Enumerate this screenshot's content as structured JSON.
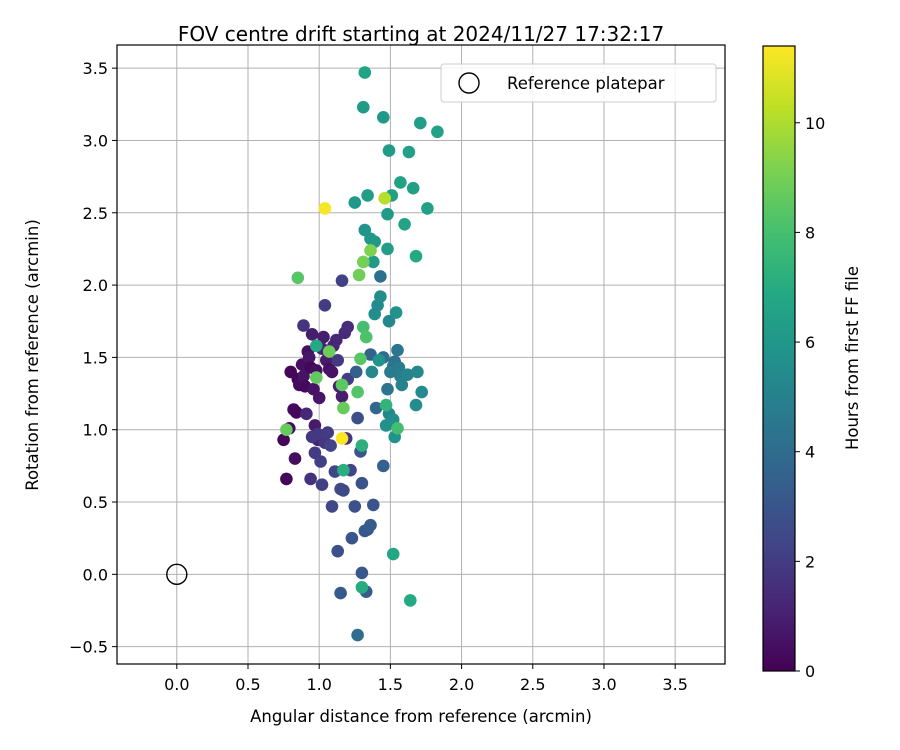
{
  "chart_data": {
    "type": "scatter",
    "title": "FOV centre drift starting at 2024/11/27 17:32:17",
    "xlabel": "Angular distance from reference (arcmin)",
    "ylabel": "Rotation from reference (arcmin)",
    "xlim": [
      -0.42,
      3.85
    ],
    "ylim": [
      -0.62,
      3.66
    ],
    "xticks": [
      0.0,
      0.5,
      1.0,
      1.5,
      2.0,
      2.5,
      3.0,
      3.5
    ],
    "xtick_labels": [
      "0.0",
      "0.5",
      "1.0",
      "1.5",
      "2.0",
      "2.5",
      "3.0",
      "3.5"
    ],
    "yticks": [
      -0.5,
      0.0,
      0.5,
      1.0,
      1.5,
      2.0,
      2.5,
      3.0,
      3.5
    ],
    "ytick_labels": [
      "−0.5",
      "0.0",
      "0.5",
      "1.0",
      "1.5",
      "2.0",
      "2.5",
      "3.0",
      "3.5"
    ],
    "grid": true,
    "legend": {
      "position": "top-right",
      "entries": [
        "Reference platepar"
      ]
    },
    "reference_point": {
      "x": 0.0,
      "y": 0.0,
      "label": "Reference platepar"
    },
    "colorbar": {
      "label": "Hours from first FF file",
      "colormap": "viridis",
      "range": [
        0,
        11.4
      ],
      "ticks": [
        0,
        2,
        4,
        6,
        8,
        10
      ],
      "tick_labels": [
        "0",
        "2",
        "4",
        "6",
        "8",
        "10"
      ]
    },
    "points": [
      [
        0.77,
        0.66,
        0.2
      ],
      [
        0.75,
        0.93,
        0.1
      ],
      [
        0.79,
        1.01,
        0.3
      ],
      [
        0.8,
        1.4,
        0.2
      ],
      [
        0.82,
        1.14,
        0.3
      ],
      [
        0.83,
        0.8,
        0.4
      ],
      [
        0.84,
        1.12,
        0.2
      ],
      [
        0.85,
        1.35,
        0.1
      ],
      [
        0.86,
        1.31,
        0.4
      ],
      [
        0.88,
        1.45,
        0.5
      ],
      [
        0.89,
        1.37,
        0.6
      ],
      [
        0.9,
        1.3,
        0.3
      ],
      [
        0.92,
        1.54,
        0.5
      ],
      [
        0.93,
        1.5,
        0.7
      ],
      [
        0.94,
        1.43,
        0.2
      ],
      [
        0.95,
        1.66,
        0.9
      ],
      [
        0.96,
        1.28,
        0.6
      ],
      [
        0.97,
        1.03,
        0.8
      ],
      [
        0.98,
        1.41,
        0.4
      ],
      [
        0.99,
        0.93,
        1.0
      ],
      [
        1.0,
        1.22,
        0.7
      ],
      [
        1.02,
        1.56,
        1.1
      ],
      [
        1.03,
        1.64,
        0.9
      ],
      [
        1.05,
        1.48,
        0.8
      ],
      [
        1.07,
        1.42,
        0.5
      ],
      [
        1.09,
        1.4,
        0.6
      ],
      [
        1.1,
        1.58,
        1.2
      ],
      [
        1.12,
        1.62,
        1.3
      ],
      [
        1.14,
        1.3,
        1.0
      ],
      [
        1.16,
        1.23,
        0.9
      ],
      [
        1.18,
        1.67,
        1.4
      ],
      [
        1.2,
        1.71,
        1.5
      ],
      [
        0.94,
        0.66,
        1.6
      ],
      [
        0.89,
        1.72,
        1.7
      ],
      [
        0.91,
        1.11,
        1.3
      ],
      [
        0.95,
        0.95,
        1.8
      ],
      [
        0.97,
        0.84,
        2.0
      ],
      [
        0.99,
        0.97,
        1.9
      ],
      [
        1.01,
        0.78,
        2.1
      ],
      [
        1.02,
        0.62,
        2.2
      ],
      [
        1.04,
        0.91,
        1.8
      ],
      [
        1.06,
        0.98,
        2.0
      ],
      [
        1.08,
        0.89,
        2.3
      ],
      [
        1.09,
        0.47,
        2.5
      ],
      [
        1.11,
        0.71,
        2.4
      ],
      [
        1.13,
        1.48,
        1.9
      ],
      [
        1.15,
        0.59,
        2.6
      ],
      [
        1.17,
        0.58,
        2.5
      ],
      [
        1.19,
        0.94,
        1.7
      ],
      [
        1.2,
        1.35,
        2.1
      ],
      [
        1.22,
        0.72,
        2.4
      ],
      [
        1.25,
        0.47,
        2.8
      ],
      [
        1.27,
        1.08,
        2.7
      ],
      [
        1.29,
        0.85,
        3.0
      ],
      [
        1.3,
        0.63,
        2.9
      ],
      [
        1.32,
        0.3,
        3.1
      ],
      [
        1.34,
        0.31,
        3.2
      ],
      [
        1.36,
        0.34,
        3.3
      ],
      [
        1.38,
        0.48,
        3.0
      ],
      [
        1.16,
        2.03,
        2.2
      ],
      [
        1.04,
        1.86,
        2.0
      ],
      [
        1.13,
        0.16,
        2.8
      ],
      [
        1.23,
        0.25,
        3.0
      ],
      [
        1.3,
        0.01,
        3.1
      ],
      [
        1.15,
        -0.13,
        3.2
      ],
      [
        1.33,
        -0.12,
        3.3
      ],
      [
        1.27,
        -0.42,
        4.0
      ],
      [
        1.45,
        0.75,
        3.5
      ],
      [
        1.4,
        1.15,
        3.8
      ],
      [
        1.43,
        2.06,
        4.2
      ],
      [
        1.36,
        1.52,
        3.6
      ],
      [
        1.26,
        1.4,
        3.4
      ],
      [
        1.45,
        1.5,
        4.0
      ],
      [
        1.48,
        1.28,
        4.4
      ],
      [
        1.5,
        1.4,
        4.6
      ],
      [
        1.52,
        1.44,
        4.8
      ],
      [
        1.53,
        1.47,
        4.3
      ],
      [
        1.55,
        1.55,
        4.5
      ],
      [
        1.56,
        1.43,
        4.7
      ],
      [
        1.57,
        1.37,
        4.9
      ],
      [
        1.58,
        1.31,
        5.0
      ],
      [
        1.62,
        1.38,
        5.1
      ],
      [
        1.69,
        1.4,
        5.3
      ],
      [
        1.72,
        1.26,
        5.4
      ],
      [
        1.68,
        1.17,
        5.5
      ],
      [
        1.49,
        1.11,
        5.2
      ],
      [
        1.52,
        1.07,
        5.6
      ],
      [
        1.53,
        0.95,
        5.8
      ],
      [
        1.47,
        1.03,
        5.7
      ],
      [
        1.42,
        1.48,
        5.9
      ],
      [
        1.37,
        1.4,
        5.3
      ],
      [
        1.39,
        1.8,
        5.6
      ],
      [
        1.41,
        1.86,
        5.4
      ],
      [
        1.43,
        1.92,
        5.5
      ],
      [
        1.49,
        1.75,
        5.2
      ],
      [
        1.54,
        1.81,
        5.8
      ],
      [
        1.32,
        2.38,
        5.9
      ],
      [
        1.36,
        2.32,
        6.0
      ],
      [
        1.39,
        2.3,
        6.1
      ],
      [
        1.38,
        2.16,
        6.2
      ],
      [
        1.48,
        2.25,
        6.3
      ],
      [
        1.48,
        2.49,
        6.2
      ],
      [
        1.51,
        2.62,
        6.4
      ],
      [
        1.25,
        2.57,
        6.1
      ],
      [
        1.34,
        2.62,
        6.3
      ],
      [
        1.57,
        2.71,
        6.5
      ],
      [
        1.6,
        2.42,
        6.6
      ],
      [
        1.66,
        2.67,
        6.4
      ],
      [
        1.68,
        2.2,
        6.9
      ],
      [
        1.76,
        2.53,
        6.5
      ],
      [
        1.49,
        2.93,
        6.2
      ],
      [
        1.63,
        2.92,
        6.4
      ],
      [
        1.45,
        3.16,
        6.1
      ],
      [
        1.71,
        3.12,
        6.3
      ],
      [
        1.83,
        3.06,
        6.5
      ],
      [
        1.31,
        3.23,
        6.2
      ],
      [
        1.32,
        3.47,
        6.6
      ],
      [
        1.52,
        0.14,
        6.8
      ],
      [
        1.64,
        -0.18,
        6.9
      ],
      [
        1.3,
        -0.09,
        7.0
      ],
      [
        1.17,
        0.72,
        7.1
      ],
      [
        1.3,
        0.89,
        7.2
      ],
      [
        0.98,
        1.58,
        6.9
      ],
      [
        1.47,
        1.17,
        7.4
      ],
      [
        1.55,
        1.01,
        7.9
      ],
      [
        1.31,
        1.71,
        8.0
      ],
      [
        1.33,
        1.64,
        8.2
      ],
      [
        1.29,
        1.49,
        8.4
      ],
      [
        1.27,
        1.26,
        8.3
      ],
      [
        1.16,
        1.31,
        8.5
      ],
      [
        1.17,
        1.15,
        8.7
      ],
      [
        0.98,
        1.36,
        8.6
      ],
      [
        1.07,
        1.54,
        8.8
      ],
      [
        0.77,
        1.0,
        8.7
      ],
      [
        0.85,
        2.05,
        8.4
      ],
      [
        1.28,
        2.07,
        8.9
      ],
      [
        1.31,
        2.16,
        9.0
      ],
      [
        1.36,
        2.24,
        9.2
      ],
      [
        1.46,
        2.6,
        10.2
      ],
      [
        1.04,
        2.53,
        11.3
      ],
      [
        1.16,
        0.94,
        11.4
      ]
    ]
  }
}
